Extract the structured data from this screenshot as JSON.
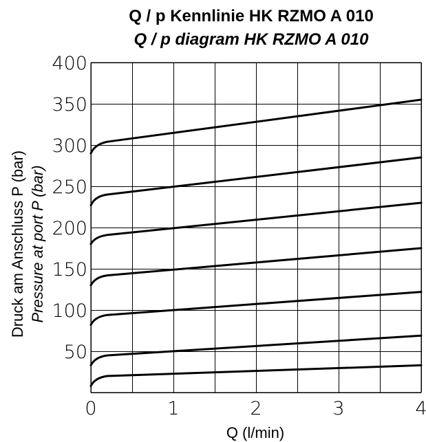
{
  "chart_data": {
    "type": "line",
    "title": "Q / p Kennlinie HK RZMO A 010",
    "subtitle": "Q / p diagram HK RZMO A 010",
    "xlabel": "Q (l/min)",
    "ylabel": "Druck am Anschluss P (bar)",
    "ylabel_secondary": "Pressure at port P (bar)",
    "xlim": [
      0,
      4
    ],
    "ylim": [
      0,
      400
    ],
    "x_ticks": [
      "0",
      "1",
      "2",
      "3",
      "4"
    ],
    "y_ticks": [
      "50",
      "100",
      "150",
      "200",
      "250",
      "300",
      "350",
      "400"
    ],
    "grid": true,
    "x_grid_step": 0.5,
    "y_grid_step": 50,
    "line_color": "#000000",
    "series": [
      {
        "x": [
          0,
          0.05,
          0.1,
          0.2,
          4
        ],
        "values": [
          8,
          15,
          18,
          20,
          33
        ]
      },
      {
        "x": [
          0,
          0.05,
          0.1,
          0.2,
          4
        ],
        "values": [
          33,
          40,
          43,
          45,
          69
        ]
      },
      {
        "x": [
          0,
          0.05,
          0.1,
          0.2,
          4
        ],
        "values": [
          82,
          89,
          92,
          94,
          122
        ]
      },
      {
        "x": [
          0,
          0.05,
          0.1,
          0.2,
          4
        ],
        "values": [
          130,
          137,
          140,
          142,
          175
        ]
      },
      {
        "x": [
          0,
          0.05,
          0.1,
          0.2,
          4
        ],
        "values": [
          180,
          186,
          189,
          191,
          230
        ]
      },
      {
        "x": [
          0,
          0.05,
          0.1,
          0.2,
          4
        ],
        "values": [
          227,
          234,
          238,
          240,
          285
        ]
      },
      {
        "x": [
          0,
          0.05,
          0.1,
          0.2,
          4
        ],
        "values": [
          290,
          297,
          301,
          304,
          355
        ]
      }
    ]
  }
}
